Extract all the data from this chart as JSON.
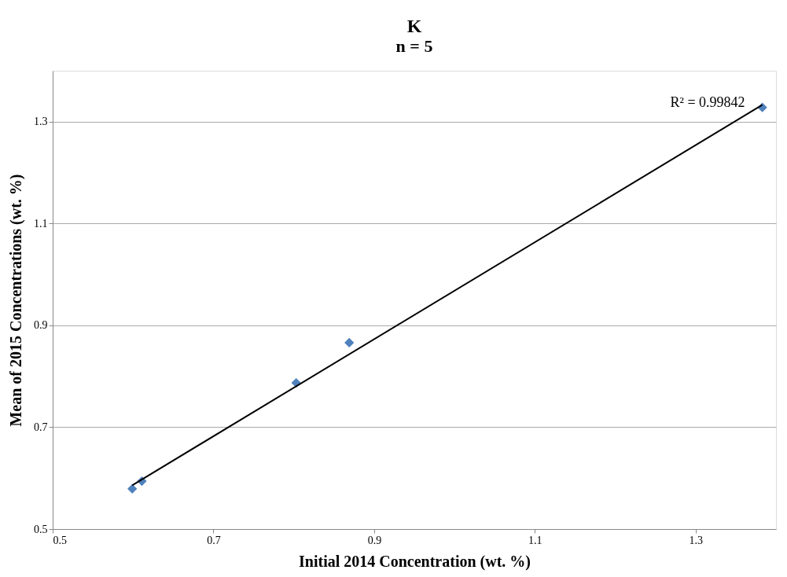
{
  "chart_data": {
    "type": "scatter",
    "title": "K",
    "subtitle": "n = 5",
    "xlabel": "Initial 2014 Concentration (wt. %)",
    "ylabel": "Mean of 2015 Concentrations (wt. %)",
    "series": [
      {
        "type": "scatter",
        "color": "#4f81bd",
        "marker": "diamond",
        "x": [
          0.599,
          0.611,
          0.803,
          0.869,
          1.383
        ],
        "values": [
          0.579,
          0.594,
          0.787,
          0.866,
          1.328
        ]
      },
      {
        "type": "line",
        "color": "#000000",
        "marker": "none",
        "line_style": "solid",
        "x": [
          0.599,
          1.383
        ],
        "values": [
          0.586,
          1.333
        ]
      }
    ],
    "xlim": [
      0.5,
      1.4
    ],
    "xticks": [
      0.5,
      0.7,
      0.9,
      1.1,
      1.3
    ],
    "ylim": [
      0.5,
      1.4
    ],
    "yticks": [
      0.5,
      0.7,
      0.9,
      1.1,
      1.3
    ],
    "grid": "y",
    "annotations": [
      {
        "text": "R² = 0.99842",
        "x": 1.383,
        "y": 1.333
      }
    ]
  }
}
